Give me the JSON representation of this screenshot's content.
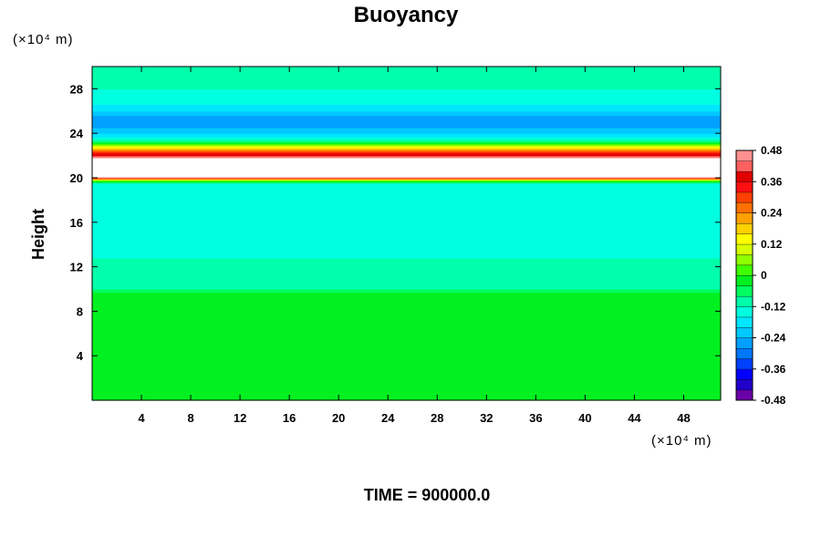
{
  "chart_data": {
    "type": "heatmap",
    "title": "Buoyancy",
    "ylabel": "Height",
    "xlabel": "",
    "x_unit": "(×10⁴ m)",
    "y_unit": "(×10⁴ m)",
    "xlim": [
      0,
      51
    ],
    "ylim": [
      0,
      30
    ],
    "x_ticks": [
      4,
      8,
      12,
      16,
      20,
      24,
      28,
      32,
      36,
      40,
      44,
      48
    ],
    "y_ticks": [
      4,
      8,
      12,
      16,
      20,
      24,
      28
    ],
    "colorbar": {
      "min": -0.48,
      "max": 0.48,
      "tick_values": [
        0.48,
        0.36,
        0.24,
        0.12,
        0,
        -0.12,
        -0.24,
        -0.36,
        -0.48
      ],
      "tick_labels": [
        "0.48",
        "0.36",
        "0.24",
        "0.12",
        "0",
        "-0.12",
        "-0.24",
        "-0.36",
        "-0.48"
      ],
      "colors": [
        "#6a00a8",
        "#2200cc",
        "#0000ff",
        "#0040ff",
        "#0078ff",
        "#00a0ff",
        "#00c8ff",
        "#00e6ff",
        "#00ffe0",
        "#00ffaa",
        "#00ff60",
        "#00f020",
        "#40ff00",
        "#90ff00",
        "#d8ff00",
        "#ffff00",
        "#ffd000",
        "#ffa000",
        "#ff7000",
        "#ff4000",
        "#ff1010",
        "#e00000",
        "#ff6060",
        "#ff9090"
      ]
    },
    "profile": [
      {
        "y": 0,
        "value": -0.02
      },
      {
        "y": 9.6,
        "value": -0.02
      },
      {
        "y": 10.0,
        "value": -0.08
      },
      {
        "y": 10.8,
        "value": -0.11
      },
      {
        "y": 12.8,
        "value": -0.12
      },
      {
        "y": 13.3,
        "value": -0.14
      },
      {
        "y": 16.0,
        "value": -0.14
      },
      {
        "y": 18.5,
        "value": -0.15
      },
      {
        "y": 19.5,
        "value": -0.12
      },
      {
        "y": 19.8,
        "value": 0.05
      },
      {
        "y": 20.0,
        "value": 0.4
      },
      {
        "y": 20.2,
        "value": 0.6
      },
      {
        "y": 21.6,
        "value": 0.6
      },
      {
        "y": 22.0,
        "value": 0.4
      },
      {
        "y": 22.4,
        "value": 0.3
      },
      {
        "y": 22.8,
        "value": 0.12
      },
      {
        "y": 23.2,
        "value": -0.05
      },
      {
        "y": 23.8,
        "value": -0.18
      },
      {
        "y": 24.5,
        "value": -0.24
      },
      {
        "y": 25.3,
        "value": -0.27
      },
      {
        "y": 26.0,
        "value": -0.2
      },
      {
        "y": 26.8,
        "value": -0.15
      },
      {
        "y": 28.0,
        "value": -0.12
      },
      {
        "y": 30.0,
        "value": -0.12
      }
    ]
  },
  "footer": {
    "time_label": "TIME = 900000.0"
  }
}
